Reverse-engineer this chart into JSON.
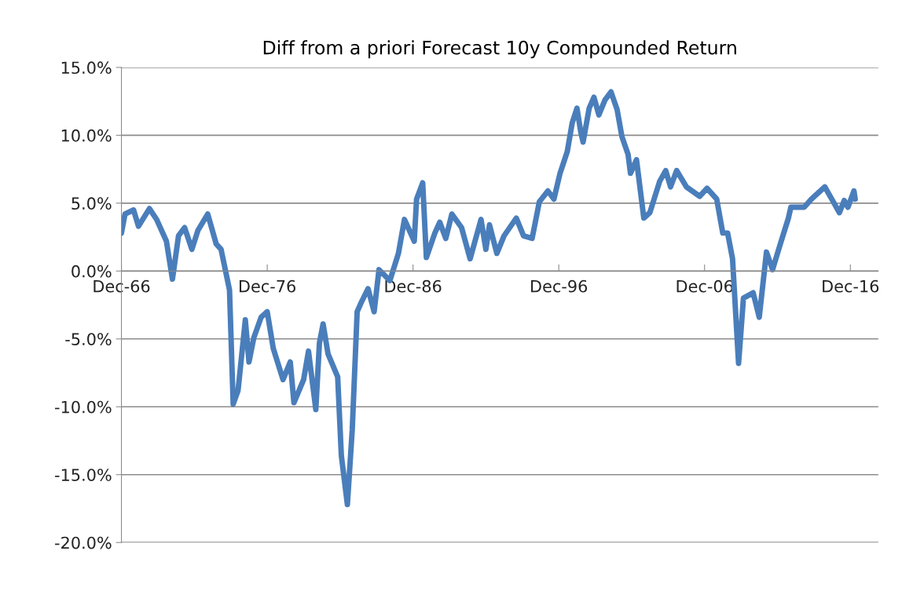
{
  "chart_data": {
    "type": "line",
    "title": "Diff from a priori Forecast 10y Compounded Return",
    "x": [
      "1966-12",
      "1967-03",
      "1967-10",
      "1968-02",
      "1968-11",
      "1969-05",
      "1970-01",
      "1970-06",
      "1970-11",
      "1971-04",
      "1971-10",
      "1972-03",
      "1972-11",
      "1973-06",
      "1973-10",
      "1974-05",
      "1974-08",
      "1974-12",
      "1975-06",
      "1975-09",
      "1976-01",
      "1976-07",
      "1976-12",
      "1977-05",
      "1978-01",
      "1978-07",
      "1978-10",
      "1979-06",
      "1979-10",
      "1980-04",
      "1980-07",
      "1980-10",
      "1981-02",
      "1981-10",
      "1982-01",
      "1982-06",
      "1982-10",
      "1983-02",
      "1983-05",
      "1983-11",
      "1984-04",
      "1984-08",
      "1985-05",
      "1985-12",
      "1986-05",
      "1987-01",
      "1987-03",
      "1987-08",
      "1987-11",
      "1988-06",
      "1988-10",
      "1989-03",
      "1989-08",
      "1990-04",
      "1990-11",
      "1991-08",
      "1991-12",
      "1992-03",
      "1992-09",
      "1993-03",
      "1994-01",
      "1994-07",
      "1995-02",
      "1995-08",
      "1996-03",
      "1996-08",
      "1997-01",
      "1997-07",
      "1997-11",
      "1998-03",
      "1998-06",
      "1998-08",
      "1999-01",
      "1999-05",
      "1999-09",
      "2000-02",
      "2000-07",
      "2000-12",
      "2001-04",
      "2001-09",
      "2001-11",
      "2002-04",
      "2002-10",
      "2003-03",
      "2003-11",
      "2004-04",
      "2004-08",
      "2005-01",
      "2005-09",
      "2006-08",
      "2007-02",
      "2007-10",
      "2008-03",
      "2008-07",
      "2008-11",
      "2009-04",
      "2009-08",
      "2010-04",
      "2010-09",
      "2011-03",
      "2011-08",
      "2012-02",
      "2012-09",
      "2012-11",
      "2013-10",
      "2014-04",
      "2015-03",
      "2015-10",
      "2016-03",
      "2016-07",
      "2016-10",
      "2017-03",
      "2017-04"
    ],
    "series": [
      {
        "color": "#4a7ebb",
        "values": [
          2.8,
          4.2,
          4.5,
          3.3,
          4.6,
          3.8,
          2.2,
          -0.6,
          2.6,
          3.2,
          1.6,
          3.0,
          4.2,
          2.0,
          1.6,
          -1.4,
          -9.8,
          -8.8,
          -3.6,
          -6.7,
          -4.9,
          -3.4,
          -3.0,
          -5.7,
          -8.0,
          -6.7,
          -9.7,
          -8.0,
          -5.9,
          -10.2,
          -5.3,
          -3.9,
          -6.1,
          -7.8,
          -13.6,
          -17.2,
          -11.7,
          -3.0,
          -2.4,
          -1.3,
          -3.0,
          0.1,
          -0.7,
          1.3,
          3.8,
          2.2,
          5.3,
          6.5,
          1.0,
          2.8,
          3.6,
          2.4,
          4.2,
          3.2,
          0.9,
          3.8,
          1.6,
          3.4,
          1.3,
          2.6,
          3.9,
          2.6,
          2.4,
          5.1,
          5.9,
          5.3,
          7.2,
          8.8,
          10.9,
          12.0,
          10.3,
          9.5,
          12.0,
          12.8,
          11.5,
          12.6,
          13.2,
          11.9,
          9.9,
          8.6,
          7.2,
          8.2,
          3.9,
          4.3,
          6.6,
          7.4,
          6.2,
          7.4,
          6.2,
          5.5,
          6.1,
          5.3,
          2.8,
          2.8,
          0.9,
          -6.8,
          -2.0,
          -1.6,
          -3.4,
          1.4,
          0.1,
          1.9,
          3.9,
          4.7,
          4.7,
          5.3,
          6.2,
          5.1,
          4.3,
          5.2,
          4.7,
          5.9,
          5.3
        ]
      }
    ],
    "xlim": [
      "1966-12",
      "2018-11"
    ],
    "xticks": [
      {
        "value": "1966-12",
        "label": "Dec-66"
      },
      {
        "value": "1976-12",
        "label": "Dec-76"
      },
      {
        "value": "1986-12",
        "label": "Dec-86"
      },
      {
        "value": "1996-12",
        "label": "Dec-96"
      },
      {
        "value": "2006-12",
        "label": "Dec-06"
      },
      {
        "value": "2016-12",
        "label": "Dec-16"
      }
    ],
    "ylim": [
      -20,
      15
    ],
    "yticks": [
      {
        "value": -20,
        "label": "-20.0%"
      },
      {
        "value": -15,
        "label": "-15.0%"
      },
      {
        "value": -10,
        "label": "-10.0%"
      },
      {
        "value": -5,
        "label": "-5.0%"
      },
      {
        "value": 0,
        "label": "0.0%"
      },
      {
        "value": 5,
        "label": "5.0%"
      },
      {
        "value": 10,
        "label": "10.0%"
      },
      {
        "value": 15,
        "label": "15.0%"
      }
    ],
    "grid": "y",
    "marker": "none",
    "line_style": "solid"
  }
}
